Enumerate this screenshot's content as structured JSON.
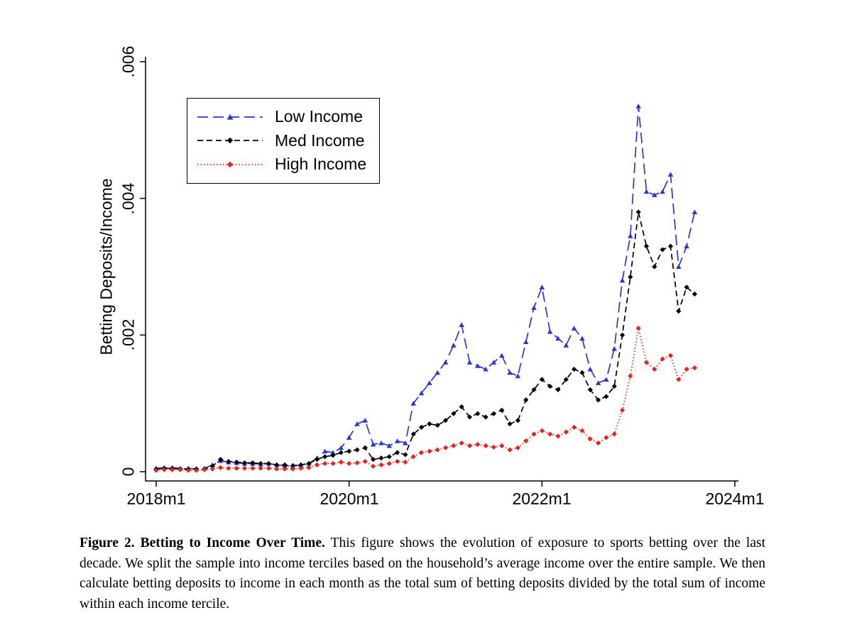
{
  "caption": {
    "bold": "Figure 2. Betting to Income Over Time.",
    "body": " This figure shows the evolution of exposure to sports betting over the last decade. We split the sample into income terciles based on the household’s average income over the entire sample. We then calculate betting deposits to income in each month as the total sum of betting deposits divided by the total sum of income within each income tercile."
  },
  "chart_data": {
    "type": "line",
    "ylabel": "Betting Deposits/Income",
    "xlabel": "",
    "x_start": "2018m1",
    "x_unit": "month",
    "x_tick_labels": [
      "2018m1",
      "2020m1",
      "2022m1",
      "2024m1"
    ],
    "x_tick_months": [
      0,
      24,
      48,
      72
    ],
    "y_ticks": [
      "0",
      ".002",
      ".004",
      ".006"
    ],
    "y_tick_values": [
      0,
      0.002,
      0.004,
      0.006
    ],
    "ylim": [
      0,
      0.006
    ],
    "grid": false,
    "legend_position": "top-left-inside",
    "series": [
      {
        "name": "Low Income",
        "color": "#2a38cc",
        "dash": "long-dash",
        "marker": "triangle",
        "values": [
          5e-05,
          6e-05,
          6e-05,
          5e-05,
          5e-05,
          4e-05,
          5e-05,
          0.0001,
          0.00016,
          0.00014,
          0.00013,
          0.00012,
          0.00012,
          0.00011,
          0.00012,
          0.0001,
          9e-05,
          8e-05,
          0.0001,
          0.00012,
          0.0002,
          0.0003,
          0.00028,
          0.00035,
          0.0005,
          0.0007,
          0.00075,
          0.0004,
          0.00042,
          0.00038,
          0.00045,
          0.00042,
          0.001,
          0.00115,
          0.0013,
          0.00145,
          0.0016,
          0.00185,
          0.00215,
          0.0016,
          0.00155,
          0.0015,
          0.0016,
          0.0017,
          0.00145,
          0.0014,
          0.0019,
          0.0024,
          0.0027,
          0.00205,
          0.00195,
          0.00185,
          0.0021,
          0.00195,
          0.0015,
          0.0013,
          0.00135,
          0.0018,
          0.0028,
          0.00345,
          0.00535,
          0.0041,
          0.00405,
          0.0041,
          0.00435,
          0.003,
          0.0033,
          0.0038
        ]
      },
      {
        "name": "Med Income",
        "color": "#000000",
        "dash": "dash",
        "marker": "diamond",
        "values": [
          4e-05,
          5e-05,
          5e-05,
          4e-05,
          4e-05,
          4e-05,
          4e-05,
          8e-05,
          0.00018,
          0.00015,
          0.00014,
          0.00013,
          0.00013,
          0.00012,
          0.00012,
          0.0001,
          0.0001,
          9e-05,
          0.0001,
          0.00012,
          0.00018,
          0.00022,
          0.00024,
          0.00028,
          0.0003,
          0.00032,
          0.00035,
          0.00018,
          0.0002,
          0.00022,
          0.00028,
          0.00025,
          0.00055,
          0.00065,
          0.0007,
          0.00068,
          0.00075,
          0.00085,
          0.00095,
          0.0008,
          0.00085,
          0.0008,
          0.00085,
          0.0009,
          0.0007,
          0.00075,
          0.00105,
          0.0012,
          0.00135,
          0.00125,
          0.0012,
          0.00135,
          0.0015,
          0.00145,
          0.0012,
          0.00105,
          0.0011,
          0.00125,
          0.002,
          0.00285,
          0.0038,
          0.0033,
          0.003,
          0.00325,
          0.0033,
          0.00235,
          0.0027,
          0.0026
        ]
      },
      {
        "name": "High Income",
        "color": "#e02519",
        "dash": "dot",
        "marker": "diamond",
        "values": [
          2e-05,
          3e-05,
          3e-05,
          3e-05,
          2e-05,
          2e-05,
          3e-05,
          4e-05,
          6e-05,
          5e-05,
          5e-05,
          5e-05,
          5e-05,
          5e-05,
          5e-05,
          4e-05,
          4e-05,
          4e-05,
          5e-05,
          6e-05,
          0.0001,
          0.00012,
          0.00012,
          0.00014,
          0.00012,
          0.00013,
          0.00015,
          8e-05,
          0.0001,
          0.00012,
          0.00015,
          0.00014,
          0.00022,
          0.00028,
          0.0003,
          0.00032,
          0.00035,
          0.00038,
          0.00042,
          0.00038,
          0.0004,
          0.00038,
          0.00036,
          0.00038,
          0.00032,
          0.00035,
          0.00045,
          0.00055,
          0.0006,
          0.00055,
          0.00052,
          0.00058,
          0.00065,
          0.0006,
          0.00048,
          0.00042,
          0.0005,
          0.00055,
          0.0009,
          0.0014,
          0.0021,
          0.0016,
          0.0015,
          0.00165,
          0.0017,
          0.00135,
          0.0015,
          0.00152
        ]
      }
    ]
  }
}
